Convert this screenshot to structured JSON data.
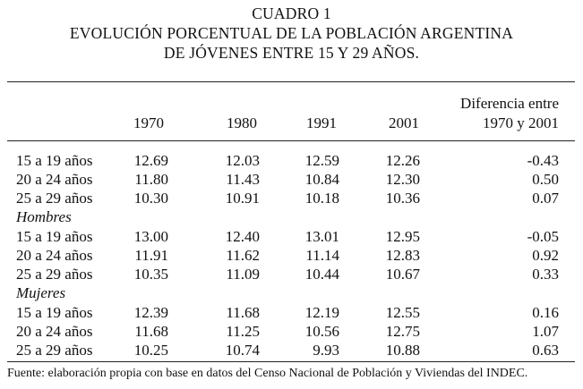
{
  "title": {
    "line1": "CUADRO 1",
    "line2": "EVOLUCIÓN PORCENTUAL DE LA POBLACIÓN ARGENTINA",
    "line3": "DE JÓVENES ENTRE 15 Y 29 AÑOS."
  },
  "header": {
    "years": [
      "1970",
      "1980",
      "1991",
      "2001"
    ],
    "diff_line1": "Diferencia entre",
    "diff_line2": "1970 y 2001"
  },
  "groups": {
    "hombres": "Hombres",
    "mujeres": "Mujeres"
  },
  "rows": [
    {
      "label": "15 a 19 años",
      "v1970": "12.69",
      "v1980": "12.03",
      "v1991": "12.59",
      "v2001": "12.26",
      "diff": "-0.43"
    },
    {
      "label": "20 a 24 años",
      "v1970": "11.80",
      "v1980": "11.43",
      "v1991": "10.84",
      "v2001": "12.30",
      "diff": "0.50"
    },
    {
      "label": "25 a 29 años",
      "v1970": "10.30",
      "v1980": "10.91",
      "v1991": "10.18",
      "v2001": "10.36",
      "diff": "0.07"
    },
    {
      "label": "15 a 19 años",
      "v1970": "13.00",
      "v1980": "12.40",
      "v1991": "13.01",
      "v2001": "12.95",
      "diff": "-0.05"
    },
    {
      "label": "20 a 24 años",
      "v1970": "11.91",
      "v1980": "11.62",
      "v1991": "11.14",
      "v2001": "12.83",
      "diff": "0.92"
    },
    {
      "label": "25 a 29 años",
      "v1970": "10.35",
      "v1980": "11.09",
      "v1991": "10.44",
      "v2001": "10.67",
      "diff": "0.33"
    },
    {
      "label": "15 a 19 años",
      "v1970": "12.39",
      "v1980": "11.68",
      "v1991": "12.19",
      "v2001": "12.55",
      "diff": "0.16"
    },
    {
      "label": "20 a 24 años",
      "v1970": "11.68",
      "v1980": "11.25",
      "v1991": "10.56",
      "v2001": "12.75",
      "diff": "1.07"
    },
    {
      "label": "25 a 29 años",
      "v1970": "10.25",
      "v1980": "10.74",
      "v1991": "9.93",
      "v2001": "10.88",
      "diff": "0.63"
    }
  ],
  "source": "Fuente: elaboración propia con base en datos del Censo Nacional de Población y Viviendas del INDEC."
}
